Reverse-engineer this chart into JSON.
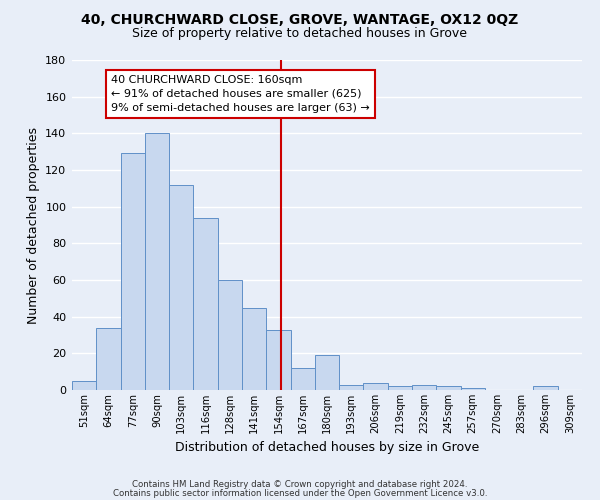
{
  "title": "40, CHURCHWARD CLOSE, GROVE, WANTAGE, OX12 0QZ",
  "subtitle": "Size of property relative to detached houses in Grove",
  "xlabel": "Distribution of detached houses by size in Grove",
  "ylabel": "Number of detached properties",
  "bin_labels": [
    "51sqm",
    "64sqm",
    "77sqm",
    "90sqm",
    "103sqm",
    "116sqm",
    "128sqm",
    "141sqm",
    "154sqm",
    "167sqm",
    "180sqm",
    "193sqm",
    "206sqm",
    "219sqm",
    "232sqm",
    "245sqm",
    "257sqm",
    "270sqm",
    "283sqm",
    "296sqm",
    "309sqm"
  ],
  "bar_values": [
    5,
    34,
    129,
    140,
    112,
    94,
    60,
    45,
    33,
    12,
    19,
    3,
    4,
    2,
    3,
    2,
    1,
    0,
    0,
    2,
    0
  ],
  "bar_color": "#c8d8ef",
  "bar_edge_color": "#6090c8",
  "ylim": [
    0,
    180
  ],
  "yticks": [
    0,
    20,
    40,
    60,
    80,
    100,
    120,
    140,
    160,
    180
  ],
  "property_line_x": 8.615,
  "property_line_color": "#cc0000",
  "annotation_title": "40 CHURCHWARD CLOSE: 160sqm",
  "annotation_line1": "← 91% of detached houses are smaller (625)",
  "annotation_line2": "9% of semi-detached houses are larger (63) →",
  "annotation_box_color": "#cc0000",
  "footer1": "Contains HM Land Registry data © Crown copyright and database right 2024.",
  "footer2": "Contains public sector information licensed under the Open Government Licence v3.0.",
  "page_bg_color": "#e8eef8",
  "plot_bg_color": "#e8eef8",
  "grid_color": "#ffffff"
}
